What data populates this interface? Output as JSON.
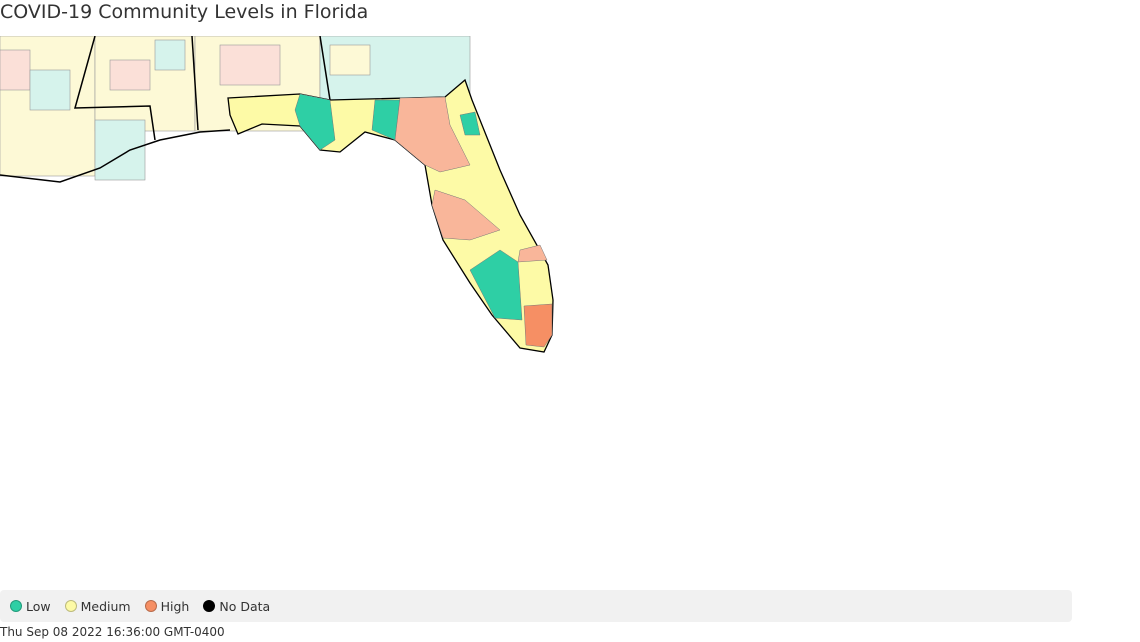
{
  "title": "COVID-19 Community Levels in Florida",
  "legend": [
    {
      "label": "Low",
      "color": "#2ecfa5"
    },
    {
      "label": "Medium",
      "color": "#fdfaa6"
    },
    {
      "label": "High",
      "color": "#f68f64"
    },
    {
      "label": "No Data",
      "color": "#000000"
    }
  ],
  "timestamp": "Thu Sep 08 2022 16:36:00 GMT-0400"
}
